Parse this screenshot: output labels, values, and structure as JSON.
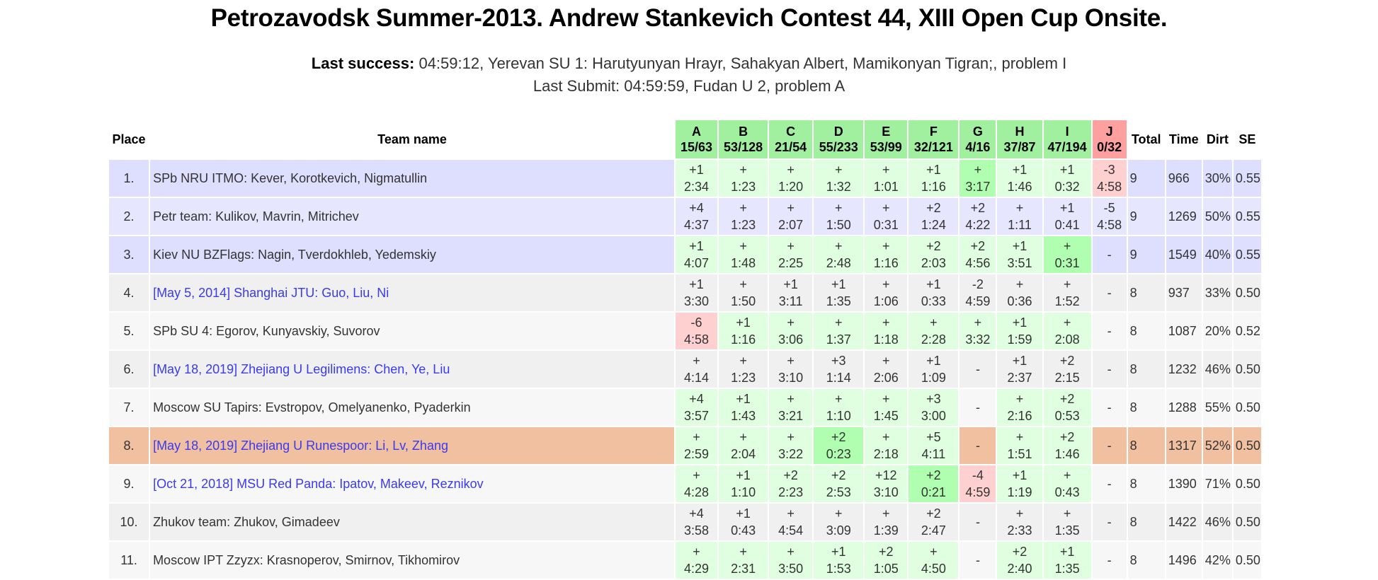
{
  "title": "Petrozavodsk Summer-2013. Andrew Stankevich Contest 44, XIII Open Cup Onsite.",
  "last_success_label": "Last success:",
  "last_success": "04:59:12, Yerevan SU 1: Harutyunyan Hrayr, Sahakyan Albert, Mamikonyan Tigran;, problem I",
  "last_submit": "Last Submit: 04:59:59, Fudan U 2, problem A",
  "colors": {
    "header_ok": "#a0f0a0",
    "header_bad": "#ffa0a0",
    "accepted": "#e0ffe0",
    "first_solve": "#b0ffb0",
    "rejected": "#ffd0d0",
    "top_rows": "#dedeff",
    "highlight": "#f0c0a0",
    "link": "#3a3af0"
  },
  "headers": {
    "place": "Place",
    "team": "Team name",
    "total": "Total",
    "time": "Time",
    "dirt": "Dirt",
    "se": "SE"
  },
  "problems": [
    {
      "letter": "A",
      "stat": "15/63"
    },
    {
      "letter": "B",
      "stat": "53/128"
    },
    {
      "letter": "C",
      "stat": "21/54"
    },
    {
      "letter": "D",
      "stat": "55/233"
    },
    {
      "letter": "E",
      "stat": "53/99"
    },
    {
      "letter": "F",
      "stat": "32/121"
    },
    {
      "letter": "G",
      "stat": "4/16"
    },
    {
      "letter": "H",
      "stat": "37/87"
    },
    {
      "letter": "I",
      "stat": "47/194"
    },
    {
      "letter": "J",
      "stat": "0/32",
      "unsolved": true
    }
  ],
  "rows": [
    {
      "place": "1.",
      "team": "SPb NRU ITMO: Kever, Korotkevich, Nigmatullin",
      "link": false,
      "group": "top",
      "cells": [
        [
          "+1",
          "2:34",
          "ok"
        ],
        [
          "+",
          "1:23",
          "ok"
        ],
        [
          "+",
          "1:20",
          "ok"
        ],
        [
          "+",
          "1:32",
          "ok"
        ],
        [
          "+",
          "1:01",
          "ok"
        ],
        [
          "+1",
          "1:16",
          "ok"
        ],
        [
          "+",
          "3:17",
          "first"
        ],
        [
          "+1",
          "1:46",
          "ok"
        ],
        [
          "+1",
          "0:32",
          "ok"
        ],
        [
          "-3",
          "4:58",
          "fail"
        ]
      ],
      "total": "9",
      "time": "966",
      "dirt": "30%",
      "se": "0.55"
    },
    {
      "place": "2.",
      "team": "Petr team: Kulikov, Mavrin, Mitrichev",
      "link": false,
      "group": "top",
      "cells": [
        [
          "+4",
          "4:37",
          "ok"
        ],
        [
          "+",
          "1:23",
          "ok"
        ],
        [
          "+",
          "2:07",
          "ok"
        ],
        [
          "+",
          "1:50",
          "ok"
        ],
        [
          "+",
          "0:31",
          "first"
        ],
        [
          "+2",
          "1:24",
          "ok"
        ],
        [
          "+2",
          "4:22",
          "ok"
        ],
        [
          "+",
          "1:11",
          "ok"
        ],
        [
          "+1",
          "0:41",
          "ok"
        ],
        [
          "-5",
          "4:58",
          "fail"
        ]
      ],
      "total": "9",
      "time": "1269",
      "dirt": "50%",
      "se": "0.55"
    },
    {
      "place": "3.",
      "team": "Kiev NU BZFlags: Nagin, Tverdokhleb, Yedemskiy",
      "link": false,
      "group": "top",
      "cells": [
        [
          "+1",
          "4:07",
          "ok"
        ],
        [
          "+",
          "1:48",
          "ok"
        ],
        [
          "+",
          "2:25",
          "ok"
        ],
        [
          "+",
          "2:48",
          "ok"
        ],
        [
          "+",
          "1:16",
          "ok"
        ],
        [
          "+2",
          "2:03",
          "ok"
        ],
        [
          "+2",
          "4:56",
          "ok"
        ],
        [
          "+1",
          "3:51",
          "ok"
        ],
        [
          "+",
          "0:31",
          "first"
        ],
        [
          "-",
          "",
          "none"
        ]
      ],
      "total": "9",
      "time": "1549",
      "dirt": "40%",
      "se": "0.55"
    },
    {
      "place": "4.",
      "team": "[May 5, 2014] Shanghai JTU: Guo, Liu, Ni",
      "link": true,
      "group": "n",
      "cells": [
        [
          "+1",
          "3:30",
          "ok"
        ],
        [
          "+",
          "1:50",
          "ok"
        ],
        [
          "+1",
          "3:11",
          "ok"
        ],
        [
          "+1",
          "1:35",
          "ok"
        ],
        [
          "+",
          "1:06",
          "ok"
        ],
        [
          "+1",
          "0:33",
          "ok"
        ],
        [
          "-2",
          "4:59",
          "fail"
        ],
        [
          "+",
          "0:36",
          "first"
        ],
        [
          "+",
          "1:52",
          "ok"
        ],
        [
          "-",
          "",
          "none"
        ]
      ],
      "total": "8",
      "time": "937",
      "dirt": "33%",
      "se": "0.50"
    },
    {
      "place": "5.",
      "team": "SPb SU 4: Egorov, Kunyavskiy, Suvorov",
      "link": false,
      "group": "n",
      "cells": [
        [
          "-6",
          "4:58",
          "fail"
        ],
        [
          "+1",
          "1:16",
          "ok"
        ],
        [
          "+",
          "3:06",
          "ok"
        ],
        [
          "+",
          "1:37",
          "ok"
        ],
        [
          "+",
          "1:18",
          "ok"
        ],
        [
          "+",
          "2:28",
          "ok"
        ],
        [
          "+",
          "3:32",
          "ok"
        ],
        [
          "+1",
          "1:59",
          "ok"
        ],
        [
          "+",
          "2:08",
          "ok"
        ],
        [
          "-",
          "",
          "none"
        ]
      ],
      "total": "8",
      "time": "1087",
      "dirt": "20%",
      "se": "0.52"
    },
    {
      "place": "6.",
      "team": "[May 18, 2019] Zhejiang U Legilimens: Chen, Ye, Liu",
      "link": true,
      "group": "n",
      "cells": [
        [
          "+",
          "4:14",
          "ok"
        ],
        [
          "+",
          "1:23",
          "ok"
        ],
        [
          "+",
          "3:10",
          "ok"
        ],
        [
          "+3",
          "1:14",
          "ok"
        ],
        [
          "+",
          "2:06",
          "ok"
        ],
        [
          "+1",
          "1:09",
          "ok"
        ],
        [
          "-",
          "",
          "none"
        ],
        [
          "+1",
          "2:37",
          "ok"
        ],
        [
          "+2",
          "2:15",
          "ok"
        ],
        [
          "-",
          "",
          "none"
        ]
      ],
      "total": "8",
      "time": "1232",
      "dirt": "46%",
      "se": "0.50"
    },
    {
      "place": "7.",
      "team": "Moscow SU Tapirs: Evstropov, Omelyanenko, Pyaderkin",
      "link": false,
      "group": "n",
      "cells": [
        [
          "+4",
          "3:57",
          "ok"
        ],
        [
          "+1",
          "1:43",
          "ok"
        ],
        [
          "+",
          "3:21",
          "ok"
        ],
        [
          "+",
          "1:10",
          "ok"
        ],
        [
          "+",
          "1:45",
          "ok"
        ],
        [
          "+3",
          "3:00",
          "ok"
        ],
        [
          "-",
          "",
          "none"
        ],
        [
          "+",
          "2:16",
          "ok"
        ],
        [
          "+2",
          "0:53",
          "ok"
        ],
        [
          "-",
          "",
          "none"
        ]
      ],
      "total": "8",
      "time": "1288",
      "dirt": "55%",
      "se": "0.50"
    },
    {
      "place": "8.",
      "team": "[May 18, 2019] Zhejiang U Runespoor: Li, Lv, Zhang",
      "link": true,
      "group": "me",
      "cells": [
        [
          "+",
          "2:59",
          "ok"
        ],
        [
          "+",
          "2:04",
          "ok"
        ],
        [
          "+",
          "3:22",
          "ok"
        ],
        [
          "+2",
          "0:23",
          "first"
        ],
        [
          "+",
          "2:18",
          "ok"
        ],
        [
          "+5",
          "4:11",
          "ok"
        ],
        [
          "-",
          "",
          "none"
        ],
        [
          "+",
          "1:51",
          "ok"
        ],
        [
          "+2",
          "1:46",
          "ok"
        ],
        [
          "-",
          "",
          "none"
        ]
      ],
      "total": "8",
      "time": "1317",
      "dirt": "52%",
      "se": "0.50"
    },
    {
      "place": "9.",
      "team": "[Oct 21, 2018] MSU Red Panda: Ipatov, Makeev, Reznikov",
      "link": true,
      "group": "n",
      "cells": [
        [
          "+",
          "4:28",
          "ok"
        ],
        [
          "+1",
          "1:10",
          "ok"
        ],
        [
          "+2",
          "2:23",
          "ok"
        ],
        [
          "+2",
          "2:53",
          "ok"
        ],
        [
          "+12",
          "3:10",
          "ok"
        ],
        [
          "+2",
          "0:21",
          "first"
        ],
        [
          "-4",
          "4:59",
          "fail"
        ],
        [
          "+1",
          "1:19",
          "ok"
        ],
        [
          "+",
          "0:43",
          "ok"
        ],
        [
          "-",
          "",
          "none"
        ]
      ],
      "total": "8",
      "time": "1390",
      "dirt": "71%",
      "se": "0.50"
    },
    {
      "place": "10.",
      "team": "Zhukov team: Zhukov, Gimadeev",
      "link": false,
      "group": "n",
      "cells": [
        [
          "+4",
          "3:58",
          "ok"
        ],
        [
          "+1",
          "0:43",
          "first"
        ],
        [
          "+",
          "4:54",
          "ok"
        ],
        [
          "+",
          "3:09",
          "ok"
        ],
        [
          "+",
          "1:39",
          "ok"
        ],
        [
          "+2",
          "2:47",
          "ok"
        ],
        [
          "-",
          "",
          "none"
        ],
        [
          "+",
          "2:33",
          "ok"
        ],
        [
          "+",
          "1:35",
          "ok"
        ],
        [
          "-",
          "",
          "none"
        ]
      ],
      "total": "8",
      "time": "1422",
      "dirt": "46%",
      "se": "0.50"
    },
    {
      "place": "11.",
      "team": "Moscow IPT Zzyzx: Krasnoperov, Smirnov, Tikhomirov",
      "link": false,
      "group": "n",
      "cells": [
        [
          "+",
          "4:29",
          "ok"
        ],
        [
          "+",
          "2:31",
          "ok"
        ],
        [
          "+",
          "3:50",
          "ok"
        ],
        [
          "+1",
          "1:53",
          "ok"
        ],
        [
          "+2",
          "1:05",
          "ok"
        ],
        [
          "+",
          "4:50",
          "ok"
        ],
        [
          "-",
          "",
          "none"
        ],
        [
          "+2",
          "2:40",
          "ok"
        ],
        [
          "+1",
          "1:35",
          "ok"
        ],
        [
          "-",
          "",
          "none"
        ]
      ],
      "total": "8",
      "time": "1496",
      "dirt": "42%",
      "se": "0.50"
    }
  ]
}
